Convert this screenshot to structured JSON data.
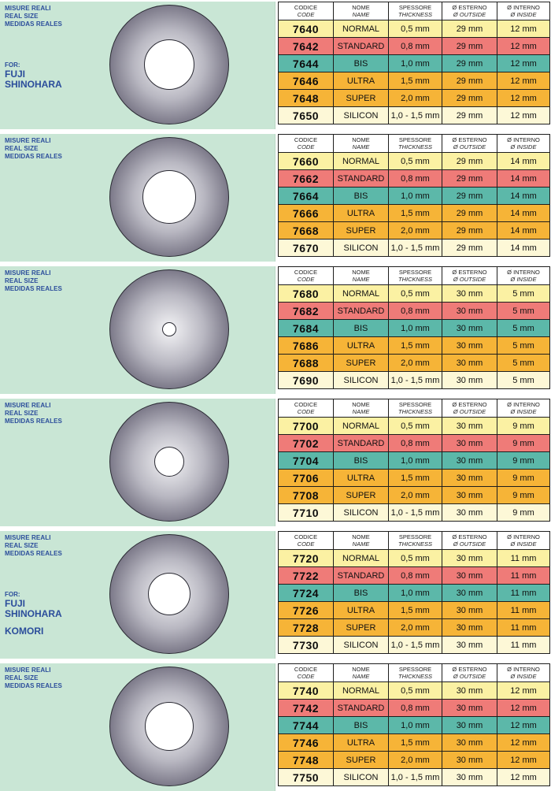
{
  "panel_text": {
    "sizes": [
      "MISURE REALI",
      "REAL SIZE",
      "MEDIDAS REALES"
    ],
    "for_label": "FOR:",
    "brand_lines": [
      "FUJI",
      "SHINOHARA"
    ],
    "extra_brand": "KOMORI"
  },
  "headers": [
    {
      "main": "CODICE",
      "sub": "CODE"
    },
    {
      "main": "NOME",
      "sub": "NAME"
    },
    {
      "main": "SPESSORE",
      "sub": "THICKNESS"
    },
    {
      "main": "Ø ESTERNO",
      "sub": "Ø OUTSIDE"
    },
    {
      "main": "Ø INTERNO",
      "sub": "Ø INSIDE"
    }
  ],
  "names": [
    "NORMAL",
    "STANDARD",
    "BIS",
    "ULTRA",
    "SUPER",
    "SILICON"
  ],
  "thickness": [
    "0,5 mm",
    "0,8 mm",
    "1,0 mm",
    "1,5 mm",
    "2,0 mm",
    "1,0 - 1,5 mm"
  ],
  "colors": {
    "panel": "#c9e6d5",
    "normal": "#fbf1a3",
    "standard": "#ef7b78",
    "bis": "#5cb8a9",
    "ultra": "#f6b437",
    "super": "#f6b437",
    "silicon": "#fdf8d7",
    "label_blue": "#2b4d9b"
  },
  "sections": [
    {
      "codes": [
        "7640",
        "7642",
        "7644",
        "7646",
        "7648",
        "7650"
      ],
      "outside": "29 mm",
      "inside": "12 mm",
      "show_for": true,
      "show_extra": false
    },
    {
      "codes": [
        "7660",
        "7662",
        "7664",
        "7666",
        "7668",
        "7670"
      ],
      "outside": "29 mm",
      "inside": "14 mm",
      "show_for": false,
      "show_extra": false
    },
    {
      "codes": [
        "7680",
        "7682",
        "7684",
        "7686",
        "7688",
        "7690"
      ],
      "outside": "30 mm",
      "inside": "5 mm",
      "show_for": false,
      "show_extra": false
    },
    {
      "codes": [
        "7700",
        "7702",
        "7704",
        "7706",
        "7708",
        "7710"
      ],
      "outside": "30 mm",
      "inside": "9 mm",
      "show_for": false,
      "show_extra": false
    },
    {
      "codes": [
        "7720",
        "7722",
        "7724",
        "7726",
        "7728",
        "7730"
      ],
      "outside": "30 mm",
      "inside": "11 mm",
      "show_for": true,
      "show_extra": true
    },
    {
      "codes": [
        "7740",
        "7742",
        "7744",
        "7746",
        "7748",
        "7750"
      ],
      "outside": "30 mm",
      "inside": "12 mm",
      "show_for": false,
      "show_extra": false
    }
  ]
}
